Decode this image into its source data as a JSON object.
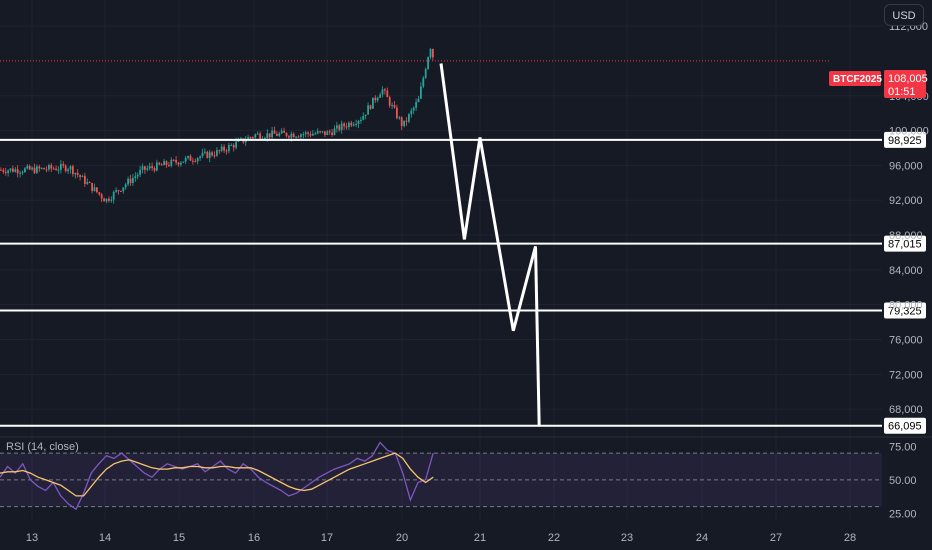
{
  "currency": "USD",
  "ticker": "BTCF2025",
  "last_price": "108,005",
  "countdown": "01:51",
  "rsi_title": "RSI (14, close)",
  "colors": {
    "background": "#161a25",
    "grid": "#1f2330",
    "up": "#26a69a",
    "down": "#ef5350",
    "price_tag": "#f23645",
    "rsi_line": "#7e57c2",
    "rsi_ma": "#f7c56c",
    "rsi_band": "#7e57c2",
    "levels": "#ffffff"
  },
  "chart_data": [
    {
      "type": "line",
      "pane": "price",
      "y_axis_ticks": [
        "112,000",
        "104,000",
        "100,000",
        "96,000",
        "92,000",
        "88,000",
        "84,000",
        "80,000",
        "76,000",
        "72,000",
        "68,000"
      ],
      "y_axis_values": [
        112000,
        104000,
        100000,
        96000,
        92000,
        88000,
        84000,
        80000,
        76000,
        72000,
        68000
      ],
      "x_axis_ticks": [
        "13",
        "14",
        "15",
        "16",
        "17",
        "20",
        "21",
        "22",
        "23",
        "24",
        "27",
        "28"
      ],
      "ylim": [
        64800,
        115000
      ],
      "last_price_value": 108005,
      "horizontal_levels": [
        {
          "label": "98,925",
          "value": 98925
        },
        {
          "label": "87,015",
          "value": 87015
        },
        {
          "label": "79,325",
          "value": 79325
        },
        {
          "label": "66,095",
          "value": 66095
        }
      ],
      "price_path_approx": [
        {
          "date": "13",
          "price": 95500
        },
        {
          "date": "13.5",
          "price": 95800
        },
        {
          "date": "14",
          "price": 92000
        },
        {
          "date": "14.5",
          "price": 95500
        },
        {
          "date": "15",
          "price": 96500
        },
        {
          "date": "15.5",
          "price": 97500
        },
        {
          "date": "16",
          "price": 99500
        },
        {
          "date": "16.5",
          "price": 99600
        },
        {
          "date": "17",
          "price": 99700
        },
        {
          "date": "17.5",
          "price": 101500
        },
        {
          "date": "17.8",
          "price": 104800
        },
        {
          "date": "20",
          "price": 100500
        },
        {
          "date": "20.2",
          "price": 103500
        },
        {
          "date": "20.35",
          "price": 109800
        },
        {
          "date": "20.4",
          "price": 108005
        }
      ],
      "projection": [
        {
          "date": "20.5",
          "price": 107700
        },
        {
          "date": "20.8",
          "price": 87500
        },
        {
          "date": "21",
          "price": 99200
        },
        {
          "date": "21.45",
          "price": 77000
        },
        {
          "date": "21.75",
          "price": 86700
        },
        {
          "date": "21.8",
          "price": 66000
        }
      ]
    },
    {
      "type": "line",
      "pane": "rsi",
      "title": "RSI (14, close)",
      "y_axis_ticks": [
        "75.00",
        "50.00",
        "25.00"
      ],
      "y_axis_values": [
        75,
        50,
        25
      ],
      "ylim": [
        20,
        82
      ],
      "band": [
        30,
        70
      ],
      "series": [
        {
          "values": [
            52,
            60,
            55,
            62,
            50,
            45,
            42,
            48,
            38,
            32,
            28,
            40,
            55,
            62,
            68,
            66,
            70,
            65,
            60,
            55,
            52,
            58,
            62,
            60,
            58,
            60,
            62,
            56,
            60,
            64,
            58,
            55,
            62,
            58,
            52,
            48,
            45,
            42,
            38,
            40,
            44,
            48,
            52,
            55,
            58,
            60,
            62,
            66,
            64,
            68,
            78,
            72,
            70,
            55,
            35,
            48,
            50,
            70
          ]
        },
        {
          "values": [
            55,
            56,
            56,
            57,
            55,
            52,
            50,
            48,
            46,
            42,
            38,
            38,
            45,
            52,
            58,
            62,
            64,
            65,
            63,
            61,
            59,
            58,
            58,
            59,
            59,
            60,
            60,
            59,
            59,
            60,
            60,
            59,
            59,
            59,
            57,
            54,
            51,
            48,
            45,
            43,
            42,
            43,
            46,
            49,
            52,
            55,
            58,
            60,
            62,
            64,
            66,
            68,
            70,
            66,
            58,
            52,
            48,
            52
          ]
        }
      ]
    }
  ]
}
